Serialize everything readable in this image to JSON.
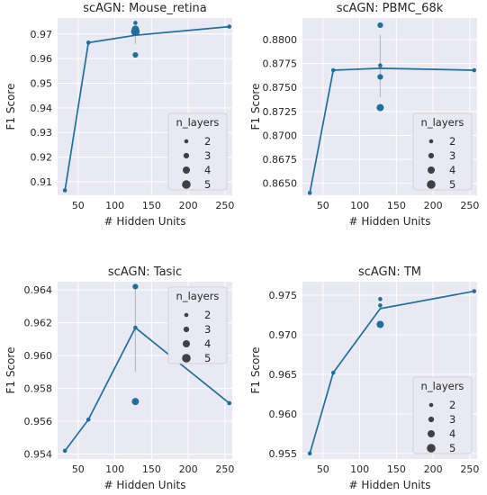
{
  "figure": {
    "background": "#ffffff",
    "axes_bg": "#e8e9f2",
    "grid_color": "#ffffff",
    "line_color": "#1f6f9e",
    "legend_title": "n_layers",
    "legend_sizes": [
      "2",
      "3",
      "4",
      "5"
    ]
  },
  "chart_data": [
    {
      "type": "line",
      "title": "scAGN: Mouse_retina",
      "xlabel": "# Hidden Units",
      "ylabel": "F1 Score",
      "xlim": [
        22,
        260
      ],
      "ylim": [
        0.9045,
        0.9765
      ],
      "xticks": [
        50,
        100,
        150,
        200,
        250
      ],
      "yticks": [
        0.91,
        0.92,
        0.93,
        0.94,
        0.95,
        0.96,
        0.97
      ],
      "ytick_labels": [
        "0.91",
        "0.92",
        "0.93",
        "0.94",
        "0.95",
        "0.96",
        "0.97"
      ],
      "grid": true,
      "legend_position": "lower-right",
      "mean_line": {
        "x": [
          32,
          64,
          128,
          256
        ],
        "y": [
          0.9065,
          0.9665,
          0.9695,
          0.973
        ]
      },
      "error_bars": [
        {
          "x": 128,
          "low": 0.966,
          "high": 0.9725
        }
      ],
      "points": [
        {
          "x": 32,
          "y": 0.9065,
          "n_layers": 2
        },
        {
          "x": 64,
          "y": 0.9665,
          "n_layers": 2
        },
        {
          "x": 128,
          "y": 0.9745,
          "n_layers": 2
        },
        {
          "x": 128,
          "y": 0.972,
          "n_layers": 4
        },
        {
          "x": 128,
          "y": 0.971,
          "n_layers": 5
        },
        {
          "x": 128,
          "y": 0.9615,
          "n_layers": 3
        },
        {
          "x": 256,
          "y": 0.973,
          "n_layers": 2
        }
      ]
    },
    {
      "type": "line",
      "title": "scAGN: PBMC_68k",
      "xlabel": "# Hidden Units",
      "ylabel": "F1 Score",
      "xlim": [
        22,
        260
      ],
      "ylim": [
        0.86375,
        0.88225
      ],
      "xticks": [
        50,
        100,
        150,
        200,
        250
      ],
      "yticks": [
        0.865,
        0.8675,
        0.87,
        0.8725,
        0.875,
        0.8775,
        0.88
      ],
      "ytick_labels": [
        "0.8650",
        "0.8675",
        "0.8700",
        "0.8725",
        "0.8750",
        "0.8775",
        "0.8800"
      ],
      "grid": true,
      "legend_position": "lower-right",
      "mean_line": {
        "x": [
          32,
          64,
          128,
          256
        ],
        "y": [
          0.864,
          0.8768,
          0.877,
          0.8768
        ]
      },
      "error_bars": [
        {
          "x": 128,
          "low": 0.874,
          "high": 0.8805
        }
      ],
      "points": [
        {
          "x": 32,
          "y": 0.864,
          "n_layers": 2
        },
        {
          "x": 64,
          "y": 0.8768,
          "n_layers": 2
        },
        {
          "x": 128,
          "y": 0.8815,
          "n_layers": 3
        },
        {
          "x": 128,
          "y": 0.8773,
          "n_layers": 2
        },
        {
          "x": 128,
          "y": 0.8761,
          "n_layers": 3
        },
        {
          "x": 128,
          "y": 0.8729,
          "n_layers": 4
        },
        {
          "x": 256,
          "y": 0.8768,
          "n_layers": 2
        }
      ]
    },
    {
      "type": "line",
      "title": "scAGN: Tasic",
      "xlabel": "# Hidden Units",
      "ylabel": "F1 Score",
      "xlim": [
        22,
        260
      ],
      "ylim": [
        0.9537,
        0.9645
      ],
      "xticks": [
        50,
        100,
        150,
        200,
        250
      ],
      "yticks": [
        0.954,
        0.956,
        0.958,
        0.96,
        0.962,
        0.964
      ],
      "ytick_labels": [
        "0.954",
        "0.956",
        "0.958",
        "0.960",
        "0.962",
        "0.964"
      ],
      "grid": true,
      "legend_position": "upper-right",
      "mean_line": {
        "x": [
          32,
          64,
          128,
          256
        ],
        "y": [
          0.9542,
          0.9561,
          0.9617,
          0.9571
        ]
      },
      "error_bars": [
        {
          "x": 128,
          "low": 0.959,
          "high": 0.9641
        }
      ],
      "points": [
        {
          "x": 32,
          "y": 0.9542,
          "n_layers": 2
        },
        {
          "x": 64,
          "y": 0.9561,
          "n_layers": 2
        },
        {
          "x": 128,
          "y": 0.9642,
          "n_layers": 3
        },
        {
          "x": 128,
          "y": 0.9617,
          "n_layers": 2
        },
        {
          "x": 128,
          "y": 0.9572,
          "n_layers": 4
        },
        {
          "x": 256,
          "y": 0.9571,
          "n_layers": 2
        }
      ]
    },
    {
      "type": "line",
      "title": "scAGN: TM",
      "xlabel": "# Hidden Units",
      "ylabel": "F1 Score",
      "xlim": [
        22,
        260
      ],
      "ylim": [
        0.9543,
        0.9767
      ],
      "xticks": [
        50,
        100,
        150,
        200,
        250
      ],
      "yticks": [
        0.955,
        0.96,
        0.965,
        0.97,
        0.975
      ],
      "ytick_labels": [
        "0.955",
        "0.960",
        "0.965",
        "0.970",
        "0.975"
      ],
      "grid": true,
      "legend_position": "lower-right",
      "mean_line": {
        "x": [
          32,
          64,
          128,
          256
        ],
        "y": [
          0.955,
          0.9652,
          0.9733,
          0.9755
        ]
      },
      "error_bars": [],
      "points": [
        {
          "x": 32,
          "y": 0.955,
          "n_layers": 2
        },
        {
          "x": 64,
          "y": 0.9652,
          "n_layers": 2
        },
        {
          "x": 128,
          "y": 0.9745,
          "n_layers": 2
        },
        {
          "x": 128,
          "y": 0.9737,
          "n_layers": 2
        },
        {
          "x": 128,
          "y": 0.9713,
          "n_layers": 4
        },
        {
          "x": 256,
          "y": 0.9755,
          "n_layers": 2
        }
      ]
    }
  ]
}
